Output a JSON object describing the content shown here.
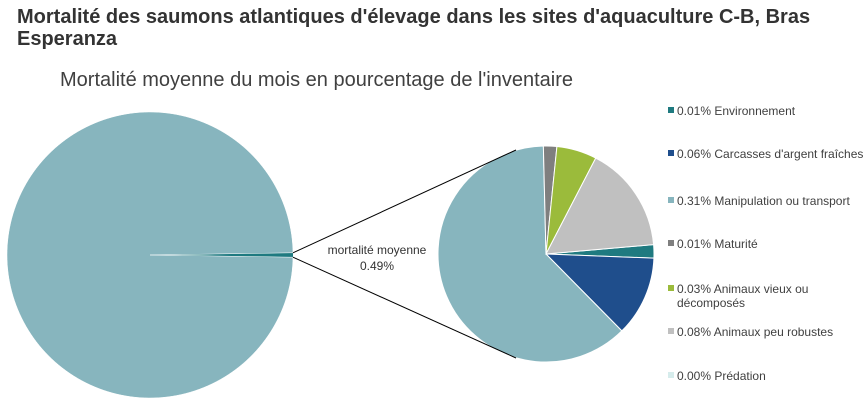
{
  "title": "Mortalité des saumons atlantiques d'élevage dans les sites d'aquaculture C-B, Bras Esperanza",
  "chart_data": {
    "type": "pie-of-pie",
    "title": "Mortalité moyenne du mois en pourcentage de l'inventaire",
    "main_pie": {
      "categories": [
        null,
        "mortalité moyenne"
      ],
      "values": [
        99.51,
        0.49
      ],
      "value_labels": [
        null,
        "0.49%"
      ],
      "color": "#87b5be",
      "detail_color": "#1f7a80"
    },
    "series": [
      {
        "name": "Environnement",
        "color": "#1f7a80",
        "values": [
          0.01
        ],
        "value_labels": [
          "0.01%"
        ]
      },
      {
        "name": "Carcasses d'argent fraîches",
        "color": "#1f4e8c",
        "values": [
          0.06
        ],
        "value_labels": [
          "0.06%"
        ]
      },
      {
        "name": "Manipulation ou transport",
        "color": "#87b5be",
        "values": [
          0.31
        ],
        "value_labels": [
          "0.31%"
        ]
      },
      {
        "name": "Maturité",
        "color": "#7f7f7f",
        "values": [
          0.01
        ],
        "value_labels": [
          "0.01%"
        ]
      },
      {
        "name": "Animaux vieux ou décomposés",
        "color": "#9bbb3b",
        "values": [
          0.03
        ],
        "value_labels": [
          "0.03%"
        ]
      },
      {
        "name": "Animaux peu robustes",
        "color": "#c0c0c0",
        "values": [
          0.08
        ],
        "value_labels": [
          "0.08%"
        ]
      },
      {
        "name": "Prédation",
        "color": "#d6ecec",
        "values": [
          0.0
        ],
        "value_labels": [
          "0.00%"
        ]
      }
    ],
    "legend": "right"
  }
}
